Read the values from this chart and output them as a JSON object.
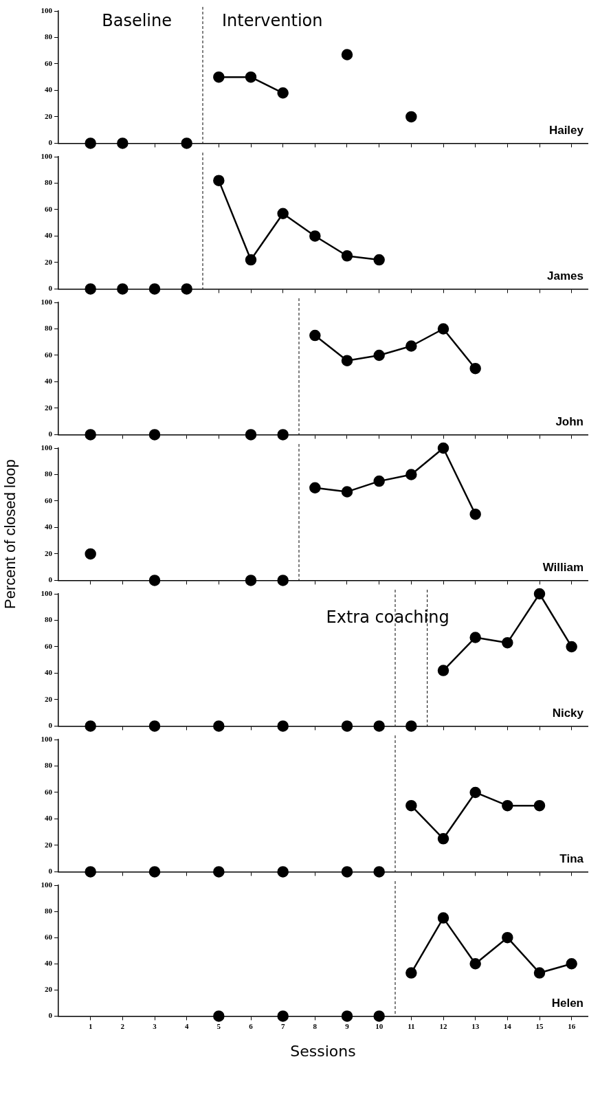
{
  "chart_data": [
    {
      "type": "line",
      "xlim": [
        0,
        16.5
      ],
      "xticks": [
        1,
        2,
        3,
        4,
        5,
        6,
        7,
        8,
        9,
        10,
        11,
        12,
        13,
        14,
        15,
        16
      ],
      "ylim": [
        0,
        100
      ],
      "yticks": [
        0,
        20,
        40,
        60,
        80,
        100
      ],
      "tick_labels": "y",
      "grid": false,
      "legend": false,
      "marker": "circle",
      "series": [
        {
          "type": "scatter",
          "color": "#000000",
          "x": [
            1,
            2,
            4
          ],
          "values": [
            0,
            0,
            0
          ]
        },
        {
          "type": "line",
          "color": "#000000",
          "x": [
            5,
            6,
            7,
            8,
            9,
            10,
            11
          ],
          "values": [
            50,
            50,
            38,
            null,
            67,
            null,
            20
          ]
        }
      ],
      "ref_lines": [
        {
          "axis": "x",
          "value": 4.5,
          "line_style": "dashed"
        }
      ],
      "annotations": [
        "Baseline",
        "Intervention",
        "Hailey"
      ]
    },
    {
      "type": "line",
      "xlim": [
        0,
        16.5
      ],
      "xticks": [
        1,
        2,
        3,
        4,
        5,
        6,
        7,
        8,
        9,
        10,
        11,
        12,
        13,
        14,
        15,
        16
      ],
      "ylim": [
        0,
        100
      ],
      "yticks": [
        0,
        20,
        40,
        60,
        80,
        100
      ],
      "tick_labels": "y",
      "grid": false,
      "legend": false,
      "marker": "circle",
      "series": [
        {
          "type": "scatter",
          "color": "#000000",
          "x": [
            1,
            2,
            3,
            4
          ],
          "values": [
            0,
            0,
            0,
            0
          ]
        },
        {
          "type": "line",
          "color": "#000000",
          "x": [
            5,
            6,
            7,
            8,
            9,
            10
          ],
          "values": [
            82,
            22,
            57,
            40,
            25,
            22
          ]
        }
      ],
      "ref_lines": [
        {
          "axis": "x",
          "value": 4.5,
          "line_style": "dashed"
        }
      ],
      "annotations": [
        "James"
      ]
    },
    {
      "type": "line",
      "xlim": [
        0,
        16.5
      ],
      "xticks": [
        1,
        2,
        3,
        4,
        5,
        6,
        7,
        8,
        9,
        10,
        11,
        12,
        13,
        14,
        15,
        16
      ],
      "ylim": [
        0,
        100
      ],
      "yticks": [
        0,
        20,
        40,
        60,
        80,
        100
      ],
      "tick_labels": "y",
      "grid": false,
      "legend": false,
      "marker": "circle",
      "series": [
        {
          "type": "scatter",
          "color": "#000000",
          "x": [
            1,
            3,
            6,
            7
          ],
          "values": [
            0,
            0,
            0,
            0
          ]
        },
        {
          "type": "line",
          "color": "#000000",
          "x": [
            8,
            9,
            10,
            11,
            12,
            13
          ],
          "values": [
            75,
            56,
            60,
            67,
            80,
            50
          ]
        }
      ],
      "ref_lines": [
        {
          "axis": "x",
          "value": 7.5,
          "line_style": "dashed"
        }
      ],
      "annotations": [
        "John"
      ]
    },
    {
      "type": "line",
      "xlim": [
        0,
        16.5
      ],
      "xticks": [
        1,
        2,
        3,
        4,
        5,
        6,
        7,
        8,
        9,
        10,
        11,
        12,
        13,
        14,
        15,
        16
      ],
      "ylim": [
        0,
        100
      ],
      "yticks": [
        0,
        20,
        40,
        60,
        80,
        100
      ],
      "tick_labels": "y",
      "grid": false,
      "legend": false,
      "marker": "circle",
      "ylabel": "Percent of closed loop",
      "series": [
        {
          "type": "scatter",
          "color": "#000000",
          "x": [
            1,
            3,
            6,
            7
          ],
          "values": [
            20,
            0,
            0,
            0
          ]
        },
        {
          "type": "line",
          "color": "#000000",
          "x": [
            8,
            9,
            10,
            11,
            12,
            13
          ],
          "values": [
            70,
            67,
            75,
            80,
            100,
            50
          ]
        }
      ],
      "ref_lines": [
        {
          "axis": "x",
          "value": 7.5,
          "line_style": "dashed"
        }
      ],
      "annotations": [
        "William"
      ]
    },
    {
      "type": "line",
      "xlim": [
        0,
        16.5
      ],
      "xticks": [
        1,
        2,
        3,
        4,
        5,
        6,
        7,
        8,
        9,
        10,
        11,
        12,
        13,
        14,
        15,
        16
      ],
      "ylim": [
        0,
        100
      ],
      "yticks": [
        0,
        20,
        40,
        60,
        80,
        100
      ],
      "tick_labels": "y",
      "grid": false,
      "legend": false,
      "marker": "circle",
      "series": [
        {
          "type": "scatter",
          "color": "#000000",
          "x": [
            1,
            3,
            5,
            7,
            9,
            10,
            11
          ],
          "values": [
            0,
            0,
            0,
            0,
            0,
            0,
            0
          ]
        },
        {
          "type": "line",
          "color": "#000000",
          "x": [
            12,
            13,
            14,
            15,
            16
          ],
          "values": [
            42,
            67,
            63,
            100,
            60
          ]
        }
      ],
      "ref_lines": [
        {
          "axis": "x",
          "value": 10.5,
          "line_style": "dashed"
        },
        {
          "axis": "x",
          "value": 11.5,
          "line_style": "dashed"
        }
      ],
      "annotations": [
        "Extra coaching",
        "Nicky"
      ]
    },
    {
      "type": "line",
      "xlim": [
        0,
        16.5
      ],
      "xticks": [
        1,
        2,
        3,
        4,
        5,
        6,
        7,
        8,
        9,
        10,
        11,
        12,
        13,
        14,
        15,
        16
      ],
      "ylim": [
        0,
        100
      ],
      "yticks": [
        0,
        20,
        40,
        60,
        80,
        100
      ],
      "tick_labels": "y",
      "grid": false,
      "legend": false,
      "marker": "circle",
      "series": [
        {
          "type": "scatter",
          "color": "#000000",
          "x": [
            1,
            3,
            5,
            7,
            9,
            10
          ],
          "values": [
            0,
            0,
            0,
            0,
            0,
            0
          ]
        },
        {
          "type": "line",
          "color": "#000000",
          "x": [
            11,
            12,
            13,
            14,
            15
          ],
          "values": [
            50,
            25,
            60,
            50,
            50
          ]
        }
      ],
      "ref_lines": [
        {
          "axis": "x",
          "value": 10.5,
          "line_style": "dashed"
        }
      ],
      "annotations": [
        "Tina"
      ]
    },
    {
      "type": "line",
      "xlim": [
        0,
        16.5
      ],
      "xticks": [
        1,
        2,
        3,
        4,
        5,
        6,
        7,
        8,
        9,
        10,
        11,
        12,
        13,
        14,
        15,
        16
      ],
      "ylim": [
        0,
        100
      ],
      "yticks": [
        0,
        20,
        40,
        60,
        80,
        100
      ],
      "grid": false,
      "legend": false,
      "marker": "circle",
      "xlabel": "Sessions",
      "series": [
        {
          "type": "scatter",
          "color": "#000000",
          "x": [
            5,
            7,
            9,
            10
          ],
          "values": [
            0,
            0,
            0,
            0
          ]
        },
        {
          "type": "line",
          "color": "#000000",
          "x": [
            11,
            12,
            13,
            14,
            15,
            16
          ],
          "values": [
            33,
            75,
            40,
            60,
            33,
            40
          ]
        }
      ],
      "ref_lines": [
        {
          "axis": "x",
          "value": 10.5,
          "line_style": "dashed"
        }
      ],
      "annotations": [
        "Helen"
      ]
    }
  ]
}
